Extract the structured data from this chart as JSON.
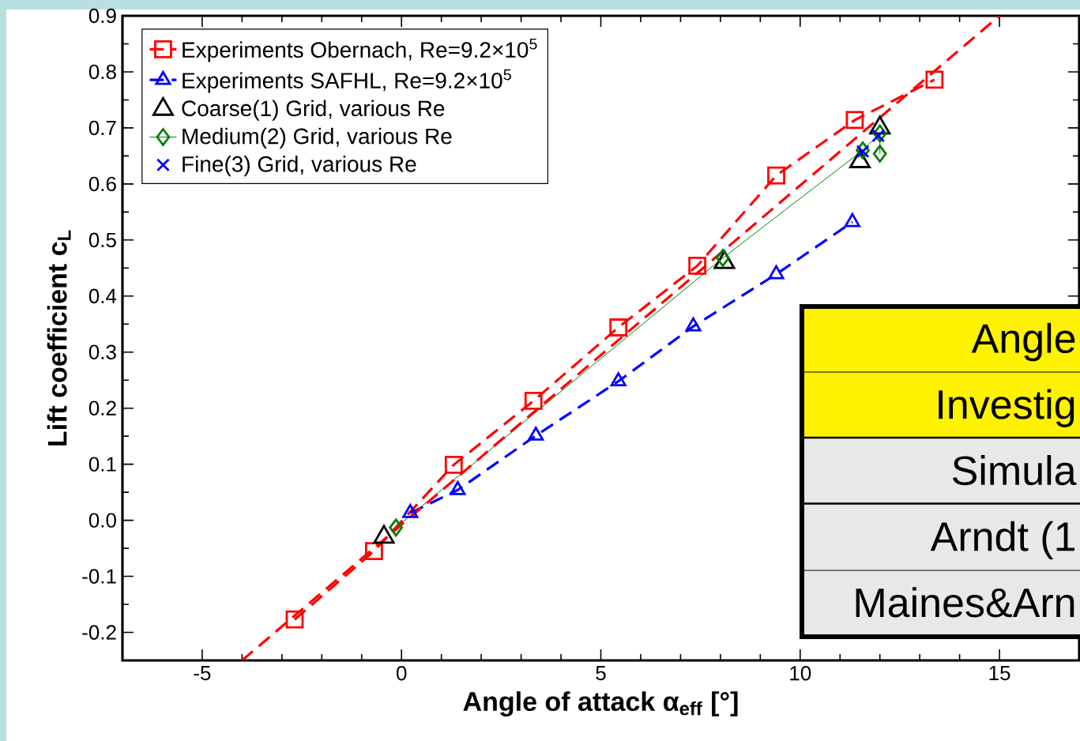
{
  "chart_data": {
    "type": "line",
    "xlabel": "Angle of attack α$_{eff}$ [°]",
    "ylabel": "Lift coefficient c$_{L}$",
    "xlim": [
      -7,
      17
    ],
    "ylim": [
      -0.25,
      0.9
    ],
    "xticks": [
      -5,
      0,
      5,
      10,
      15
    ],
    "yticks": [
      {
        "value": -0.2,
        "label": "-0.2"
      },
      {
        "value": -0.1,
        "label": "-0.1"
      },
      {
        "value": 0,
        "label": "0.0"
      },
      {
        "value": 0.1,
        "label": "0.1"
      },
      {
        "value": 0.2,
        "label": "0.2"
      },
      {
        "value": 0.3,
        "label": "0.3"
      },
      {
        "value": 0.4,
        "label": "0.4"
      },
      {
        "value": 0.5,
        "label": "0.5"
      },
      {
        "value": 0.6,
        "label": "0.6"
      },
      {
        "value": 0.7,
        "label": "0.7"
      },
      {
        "value": 0.8,
        "label": "0.8"
      },
      {
        "value": 0.9,
        "label": "0.9"
      }
    ],
    "legend": "top left",
    "series": [
      {
        "name": "Experiments Obernach, Re=9.2×10$^{5}$",
        "type": "line",
        "color": "#ff0000",
        "marker": "square",
        "line_style": "dashed",
        "x": [
          -2.68,
          -0.69,
          1.31,
          3.31,
          5.44,
          7.42,
          9.4,
          11.37,
          13.37
        ],
        "values": [
          -0.177,
          -0.055,
          0.099,
          0.213,
          0.344,
          0.454,
          0.615,
          0.714,
          0.786
        ]
      },
      {
        "name": "Experiments SAFHL, Re=9.2×10$^{5}$",
        "type": "line",
        "color": "#0000ff",
        "marker": "triangle",
        "line_style": "dashed",
        "x": [
          0.22,
          1.41,
          3.37,
          5.44,
          7.32,
          9.4,
          11.31
        ],
        "values": [
          0.013,
          0.054,
          0.151,
          0.248,
          0.346,
          0.439,
          0.532
        ]
      },
      {
        "name": "Coarse(1) Grid, various Re",
        "type": "scatter",
        "color": "#000000",
        "marker": "triangle",
        "x": [
          -0.44,
          8.1,
          11.5,
          12.0
        ],
        "values": [
          -0.03,
          0.46,
          0.64,
          0.7
        ]
      },
      {
        "name": "Medium(2) Grid, various Re",
        "type": "line",
        "color": "#008000",
        "marker": "diamond",
        "line_style": "solid",
        "x": [
          -0.14,
          8.06,
          11.57,
          12.0,
          12.0
        ],
        "values": [
          -0.013,
          0.468,
          0.66,
          0.69,
          0.654
        ]
      },
      {
        "name": "Fine(3) Grid, various Re",
        "type": "scatter",
        "color": "#0000ff",
        "marker": "cross",
        "x": [
          11.57,
          11.96
        ],
        "values": [
          0.658,
          0.686
        ]
      },
      {
        "type": "line",
        "color": "#ff0000",
        "marker": "none",
        "line_style": "dashed",
        "x": [
          -4.0,
          15.0
        ],
        "values": [
          -0.25,
          0.9
        ]
      }
    ],
    "annotations": [
      "Angle",
      "Investig",
      "Simula",
      "Arndt (1",
      "Maines&Arn"
    ]
  }
}
